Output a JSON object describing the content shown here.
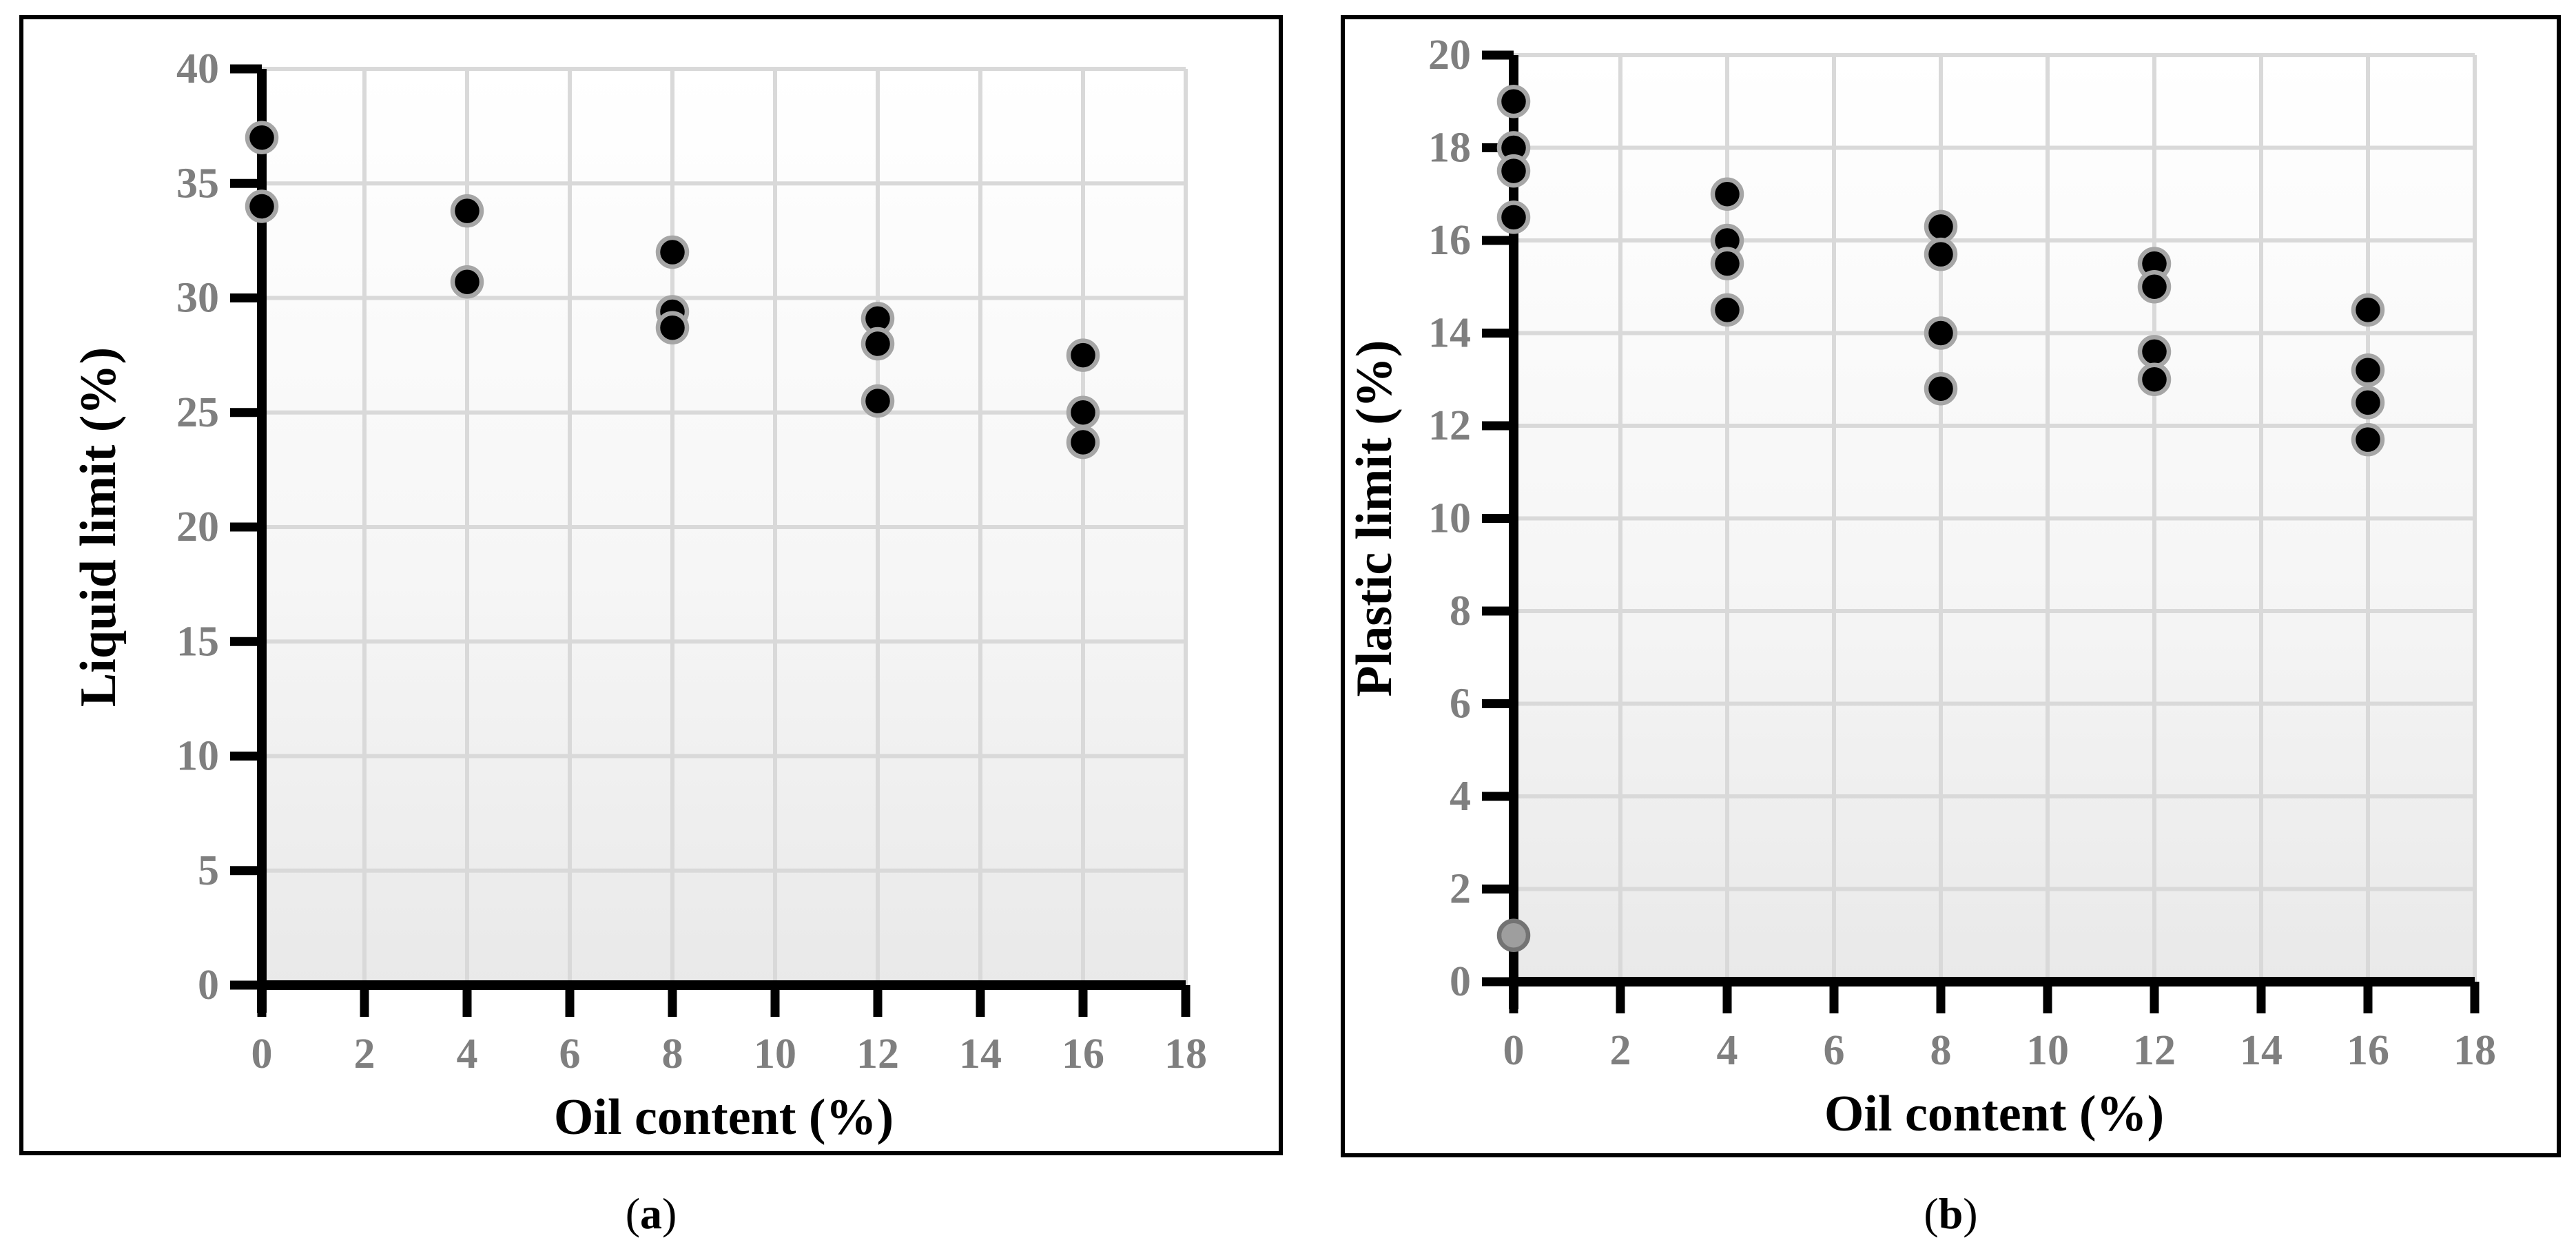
{
  "colors": {
    "marker_fill": "#000000",
    "marker_ring": "#a6a6a6",
    "gray_marker_fill": "#9e9e9e",
    "gray_marker_ring": "#737373",
    "gridline": "#d9d9d9",
    "axis": "#000000",
    "tick_label": "#7f7f7f",
    "axis_title": "#000000",
    "plot_bg_top": "#ffffff",
    "plot_bg_mid": "#f6f6f6",
    "plot_bg_bottom": "#e9e9e9"
  },
  "chart_data": [
    {
      "type": "scatter",
      "panel": "a",
      "title": "",
      "xlabel": "Oil content (%)",
      "ylabel": "Liquid limit (%)",
      "xlim": [
        0,
        18
      ],
      "ylim": [
        0,
        40
      ],
      "xticks": [
        0,
        2,
        4,
        6,
        8,
        10,
        12,
        14,
        16,
        18
      ],
      "yticks": [
        0,
        5,
        10,
        15,
        20,
        25,
        30,
        35,
        40
      ],
      "grid": true,
      "legend": "none",
      "series": [
        {
          "name": "liquid-limit-measurements",
          "marker": "black-circle",
          "points": [
            [
              0,
              37.0
            ],
            [
              0,
              34.0
            ],
            [
              4,
              33.8
            ],
            [
              4,
              30.7
            ],
            [
              8,
              32.0
            ],
            [
              8,
              29.4
            ],
            [
              8,
              28.7
            ],
            [
              12,
              29.1
            ],
            [
              12,
              28.0
            ],
            [
              12,
              25.5
            ],
            [
              16,
              27.5
            ],
            [
              16,
              25.0
            ],
            [
              16,
              23.7
            ]
          ]
        }
      ],
      "caption": {
        "open": "(",
        "letter": "a",
        "close": ")"
      }
    },
    {
      "type": "scatter",
      "panel": "b",
      "title": "",
      "xlabel": "Oil content (%)",
      "ylabel": "Plastic limit (%)",
      "xlim": [
        0,
        18
      ],
      "ylim": [
        0,
        20
      ],
      "xticks": [
        0,
        2,
        4,
        6,
        8,
        10,
        12,
        14,
        16,
        18
      ],
      "yticks": [
        0,
        2,
        4,
        6,
        8,
        10,
        12,
        14,
        16,
        18,
        20
      ],
      "grid": true,
      "legend": "none",
      "series": [
        {
          "name": "plastic-limit-measurements",
          "marker": "black-circle",
          "points": [
            [
              0,
              19.0
            ],
            [
              0,
              18.0
            ],
            [
              0,
              17.5
            ],
            [
              0,
              16.5
            ],
            [
              4,
              17.0
            ],
            [
              4,
              16.0
            ],
            [
              4,
              15.5
            ],
            [
              4,
              14.5
            ],
            [
              8,
              16.3
            ],
            [
              8,
              15.7
            ],
            [
              8,
              14.0
            ],
            [
              8,
              12.8
            ],
            [
              12,
              15.5
            ],
            [
              12,
              15.0
            ],
            [
              12,
              13.6
            ],
            [
              12,
              13.0
            ],
            [
              16,
              14.5
            ],
            [
              16,
              13.2
            ],
            [
              16,
              12.5
            ],
            [
              16,
              11.7
            ]
          ]
        },
        {
          "name": "gray-outlier-point",
          "marker": "gray-circle",
          "points": [
            [
              0,
              1.0
            ]
          ]
        }
      ],
      "caption": {
        "open": "(",
        "letter": "b",
        "close": ")"
      }
    }
  ]
}
